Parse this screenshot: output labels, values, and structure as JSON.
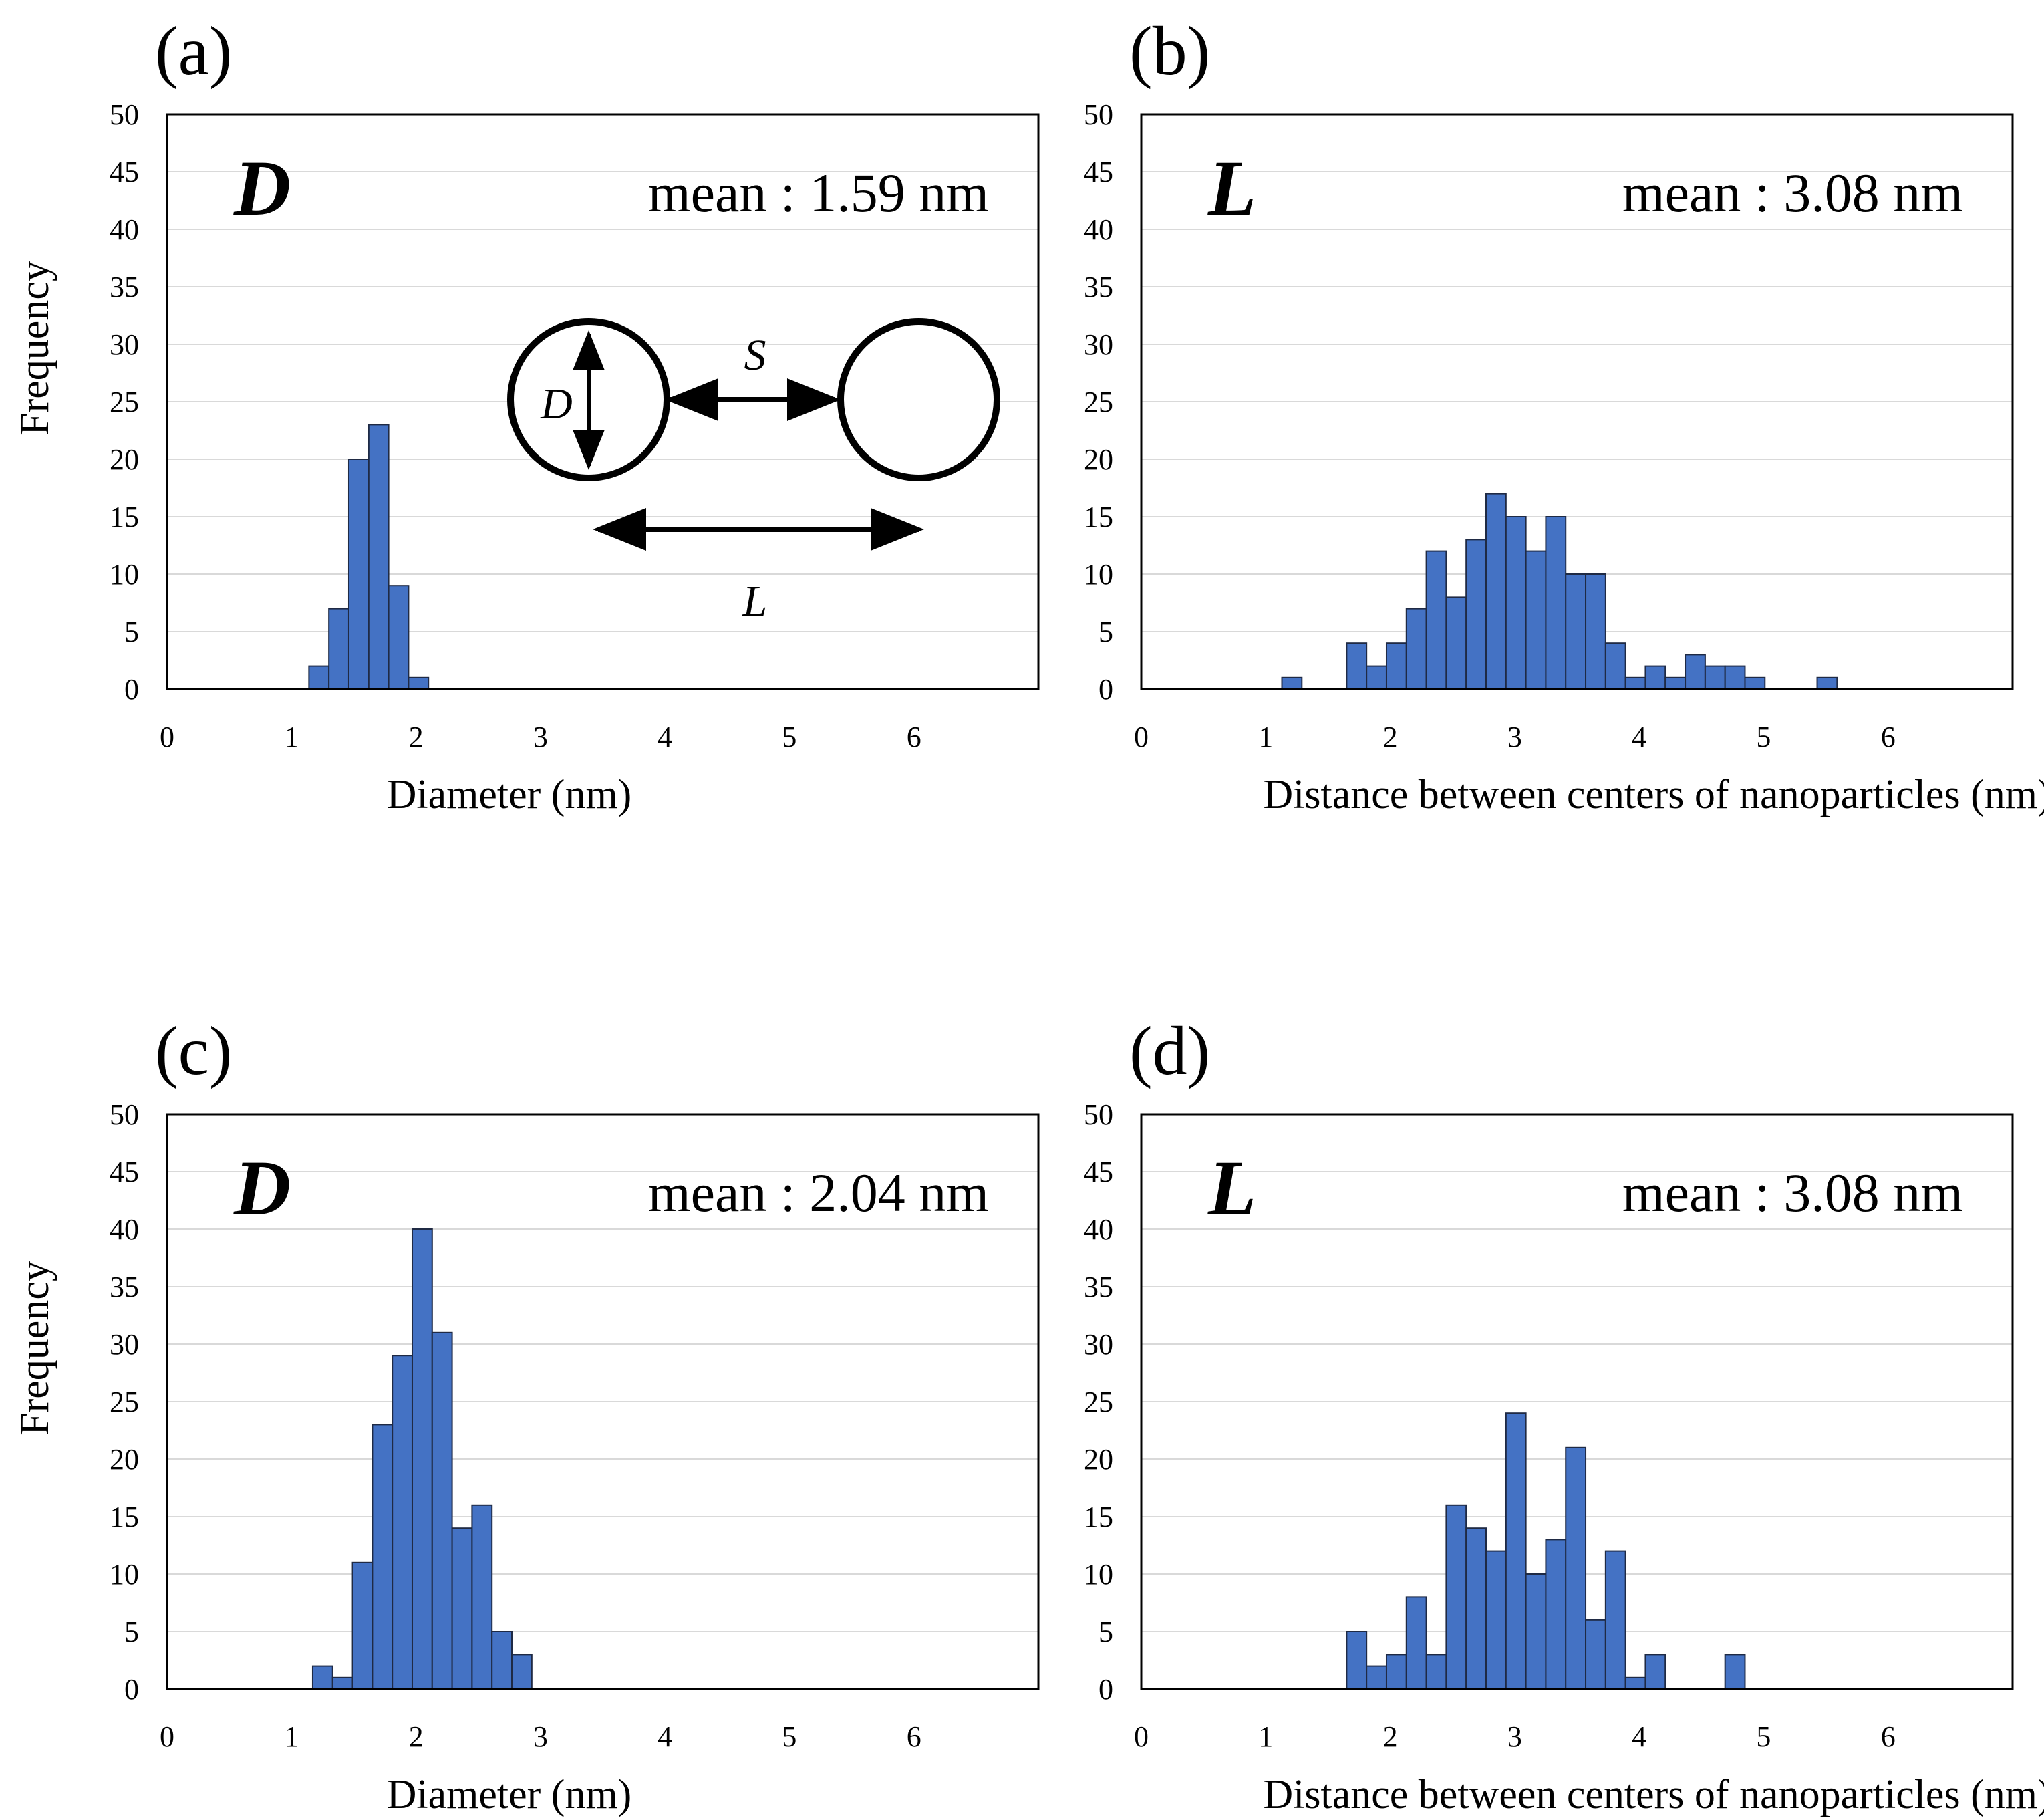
{
  "colors": {
    "bar_fill": "#4472C4",
    "bar_stroke": "#1f2a44",
    "grid": "#d9d9d9",
    "axis": "#000000",
    "text": "#000000"
  },
  "chart_data": [
    {
      "id": "a",
      "type": "bar",
      "panel_label": "(a)",
      "corner_label": "D",
      "mean_label": "mean : 1.59 nm",
      "xlabel": "Diameter (nm)",
      "ylabel": "Frequency",
      "xlim": [
        0,
        7
      ],
      "ylim": [
        0,
        50
      ],
      "xticks": [
        0,
        1,
        2,
        3,
        4,
        5,
        6
      ],
      "yticks": [
        0,
        5,
        10,
        15,
        20,
        25,
        30,
        35,
        40,
        45,
        50
      ],
      "bin_width": 0.16,
      "bin_starts": [
        1.14,
        1.3,
        1.46,
        1.62,
        1.78,
        1.94
      ],
      "values": [
        2,
        7,
        20,
        23,
        9,
        1
      ],
      "grid": "horizontal",
      "inset": {
        "diameter_label": "D",
        "gap_label": "S",
        "distance_label": "L"
      }
    },
    {
      "id": "b",
      "type": "bar",
      "panel_label": "(b)",
      "corner_label": "L",
      "mean_label": "mean : 3.08 nm",
      "xlabel": "Distance between centers of nanoparticles (nm)",
      "ylabel": "",
      "xlim": [
        0,
        7
      ],
      "ylim": [
        0,
        50
      ],
      "xticks": [
        0,
        1,
        2,
        3,
        4,
        5,
        6
      ],
      "yticks": [
        0,
        5,
        10,
        15,
        20,
        25,
        30,
        35,
        40,
        45,
        50
      ],
      "bin_width": 0.16,
      "bin_starts": [
        1.13,
        1.65,
        1.81,
        1.97,
        2.13,
        2.29,
        2.45,
        2.61,
        2.77,
        2.93,
        3.09,
        3.25,
        3.41,
        3.57,
        3.73,
        3.89,
        4.05,
        4.21,
        4.37,
        4.53,
        4.69,
        4.85,
        5.01,
        5.43
      ],
      "values": [
        1,
        4,
        2,
        4,
        7,
        12,
        8,
        13,
        17,
        15,
        12,
        15,
        10,
        10,
        4,
        1,
        2,
        1,
        3,
        2,
        2,
        1,
        0,
        1
      ],
      "grid": "horizontal"
    },
    {
      "id": "c",
      "type": "bar",
      "panel_label": "(c)",
      "corner_label": "D",
      "mean_label": "mean : 2.04 nm",
      "xlabel": "Diameter (nm)",
      "ylabel": "Frequency",
      "xlim": [
        0,
        7
      ],
      "ylim": [
        0,
        50
      ],
      "xticks": [
        0,
        1,
        2,
        3,
        4,
        5,
        6
      ],
      "yticks": [
        0,
        5,
        10,
        15,
        20,
        25,
        30,
        35,
        40,
        45,
        50
      ],
      "bin_width": 0.16,
      "bin_starts": [
        1.17,
        1.33,
        1.49,
        1.65,
        1.81,
        1.97,
        2.13,
        2.29,
        2.45,
        2.61,
        2.77
      ],
      "values": [
        2,
        1,
        11,
        23,
        29,
        40,
        31,
        14,
        16,
        5,
        3
      ],
      "grid": "horizontal"
    },
    {
      "id": "d",
      "type": "bar",
      "panel_label": "(d)",
      "corner_label": "L",
      "mean_label": "mean : 3.08 nm",
      "xlabel": "Distance between centers of nanoparticles (nm)",
      "ylabel": "",
      "xlim": [
        0,
        7
      ],
      "ylim": [
        0,
        50
      ],
      "xticks": [
        0,
        1,
        2,
        3,
        4,
        5,
        6
      ],
      "yticks": [
        0,
        5,
        10,
        15,
        20,
        25,
        30,
        35,
        40,
        45,
        50
      ],
      "bin_width": 0.16,
      "bin_starts": [
        1.65,
        1.81,
        1.97,
        2.13,
        2.29,
        2.45,
        2.61,
        2.77,
        2.93,
        3.09,
        3.25,
        3.41,
        3.57,
        3.73,
        3.89,
        4.05,
        4.69
      ],
      "values": [
        5,
        2,
        3,
        8,
        3,
        16,
        14,
        12,
        24,
        10,
        13,
        21,
        6,
        12,
        1,
        3,
        3
      ],
      "grid": "horizontal"
    }
  ]
}
